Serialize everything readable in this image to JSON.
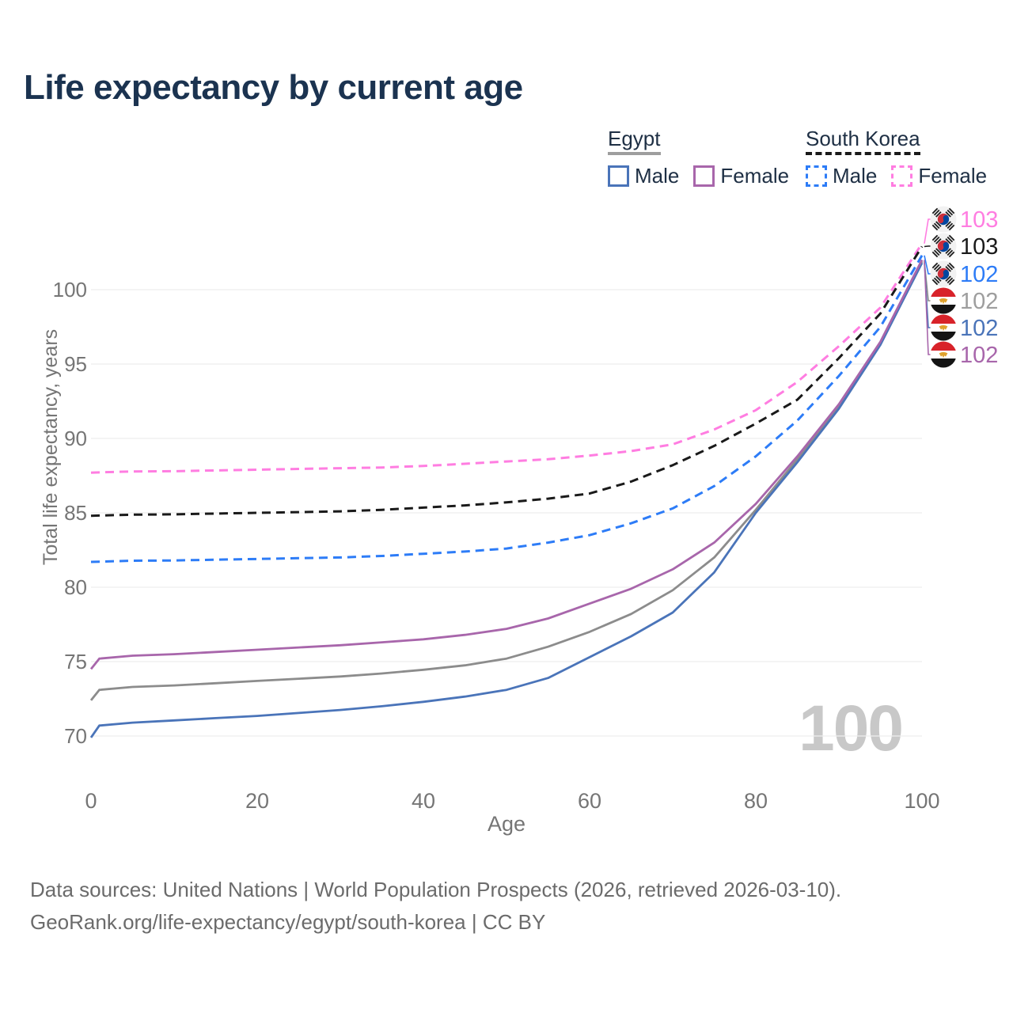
{
  "header": {
    "title": "Life expectancy by current age"
  },
  "legend": {
    "groups": [
      {
        "name": "Egypt",
        "underline": {
          "style": "solid",
          "color": "#9e9e9e"
        },
        "items": [
          {
            "label": "Male",
            "color": "#4a74b9",
            "dashed": false
          },
          {
            "label": "Female",
            "color": "#a866ab",
            "dashed": false
          }
        ]
      },
      {
        "name": "South Korea",
        "underline": {
          "style": "dashed",
          "color": "#1a1a1a"
        },
        "items": [
          {
            "label": "Male",
            "color": "#2d7cf7",
            "dashed": true
          },
          {
            "label": "Female",
            "color": "#ff7de1",
            "dashed": true
          }
        ]
      }
    ]
  },
  "chart_data": {
    "type": "line",
    "title": "Life expectancy by current age",
    "xlabel": "Age",
    "ylabel": "Total life expectancy, years",
    "xticks": [
      0,
      20,
      40,
      60,
      80,
      100
    ],
    "yticks": [
      70,
      75,
      80,
      85,
      90,
      95,
      100
    ],
    "xlim": [
      0,
      100
    ],
    "ylim": [
      67,
      105
    ],
    "grid": "horizontal",
    "legend_position": "top-right",
    "watermark": "100",
    "x": [
      0,
      1,
      5,
      10,
      15,
      20,
      25,
      30,
      35,
      40,
      45,
      50,
      55,
      60,
      65,
      70,
      75,
      80,
      85,
      90,
      95,
      100
    ],
    "series": [
      {
        "id": "south-korea-female",
        "name": "South Korea Female",
        "country": "South Korea",
        "sex": "Female",
        "color": "#ff7de1",
        "dashed": true,
        "flag": "south-korea",
        "end_label": "103",
        "end_label_color": "#ff7de1",
        "values": [
          87.7,
          87.72,
          87.78,
          87.8,
          87.85,
          87.9,
          87.95,
          88.0,
          88.05,
          88.15,
          88.3,
          88.45,
          88.6,
          88.85,
          89.15,
          89.6,
          90.6,
          91.9,
          93.8,
          96.2,
          98.8,
          103.1
        ]
      },
      {
        "id": "south-korea-total",
        "name": "South Korea",
        "country": "South Korea",
        "sex": "Both",
        "color": "#1a1a1a",
        "dashed": true,
        "flag": "south-korea",
        "end_label": "103",
        "end_label_color": "#1a1a1a",
        "values": [
          84.8,
          84.82,
          84.88,
          84.9,
          84.95,
          85.0,
          85.05,
          85.1,
          85.2,
          85.35,
          85.5,
          85.7,
          85.95,
          86.3,
          87.1,
          88.2,
          89.5,
          91.0,
          92.6,
          95.4,
          98.4,
          102.9
        ]
      },
      {
        "id": "south-korea-male",
        "name": "South Korea Male",
        "country": "South Korea",
        "sex": "Male",
        "color": "#2d7cf7",
        "dashed": true,
        "flag": "south-korea",
        "end_label": "102",
        "end_label_color": "#2d7cf7",
        "values": [
          81.7,
          81.72,
          81.78,
          81.8,
          81.85,
          81.9,
          81.95,
          82.0,
          82.1,
          82.25,
          82.4,
          82.6,
          83.0,
          83.5,
          84.3,
          85.3,
          86.8,
          88.8,
          91.2,
          94.2,
          97.5,
          102.3
        ]
      },
      {
        "id": "egypt-total",
        "name": "Egypt",
        "country": "Egypt",
        "sex": "Both",
        "color": "#8c8c8c",
        "dashed": false,
        "flag": "egypt",
        "end_label": "102",
        "end_label_color": "#9e9e9e",
        "values": [
          72.4,
          73.1,
          73.3,
          73.4,
          73.55,
          73.7,
          73.85,
          74.0,
          74.2,
          74.45,
          74.75,
          75.2,
          76.0,
          77.0,
          78.2,
          79.8,
          82.0,
          85.2,
          88.6,
          92.1,
          96.4,
          101.9
        ]
      },
      {
        "id": "egypt-male",
        "name": "Egypt Male",
        "country": "Egypt",
        "sex": "Male",
        "color": "#4a74b9",
        "dashed": false,
        "flag": "egypt",
        "end_label": "102",
        "end_label_color": "#4a74b9",
        "values": [
          69.9,
          70.7,
          70.9,
          71.05,
          71.2,
          71.35,
          71.55,
          71.75,
          72.0,
          72.3,
          72.65,
          73.1,
          73.9,
          75.3,
          76.7,
          78.3,
          81.0,
          85.0,
          88.4,
          92.0,
          96.3,
          101.8
        ]
      },
      {
        "id": "egypt-female",
        "name": "Egypt Female",
        "country": "Egypt",
        "sex": "Female",
        "color": "#a866ab",
        "dashed": false,
        "flag": "egypt",
        "end_label": "102",
        "end_label_color": "#a866ab",
        "values": [
          74.5,
          75.2,
          75.4,
          75.5,
          75.65,
          75.8,
          75.95,
          76.1,
          76.3,
          76.5,
          76.8,
          77.2,
          77.9,
          78.9,
          79.9,
          81.2,
          83.0,
          85.6,
          88.8,
          92.3,
          96.5,
          102.0
        ]
      }
    ]
  },
  "footer": {
    "line1": "Data sources: United Nations | World Population Prospects (2026, retrieved 2026-03-10).",
    "line2": "GeoRank.org/life-expectancy/egypt/south-korea | CC BY"
  }
}
